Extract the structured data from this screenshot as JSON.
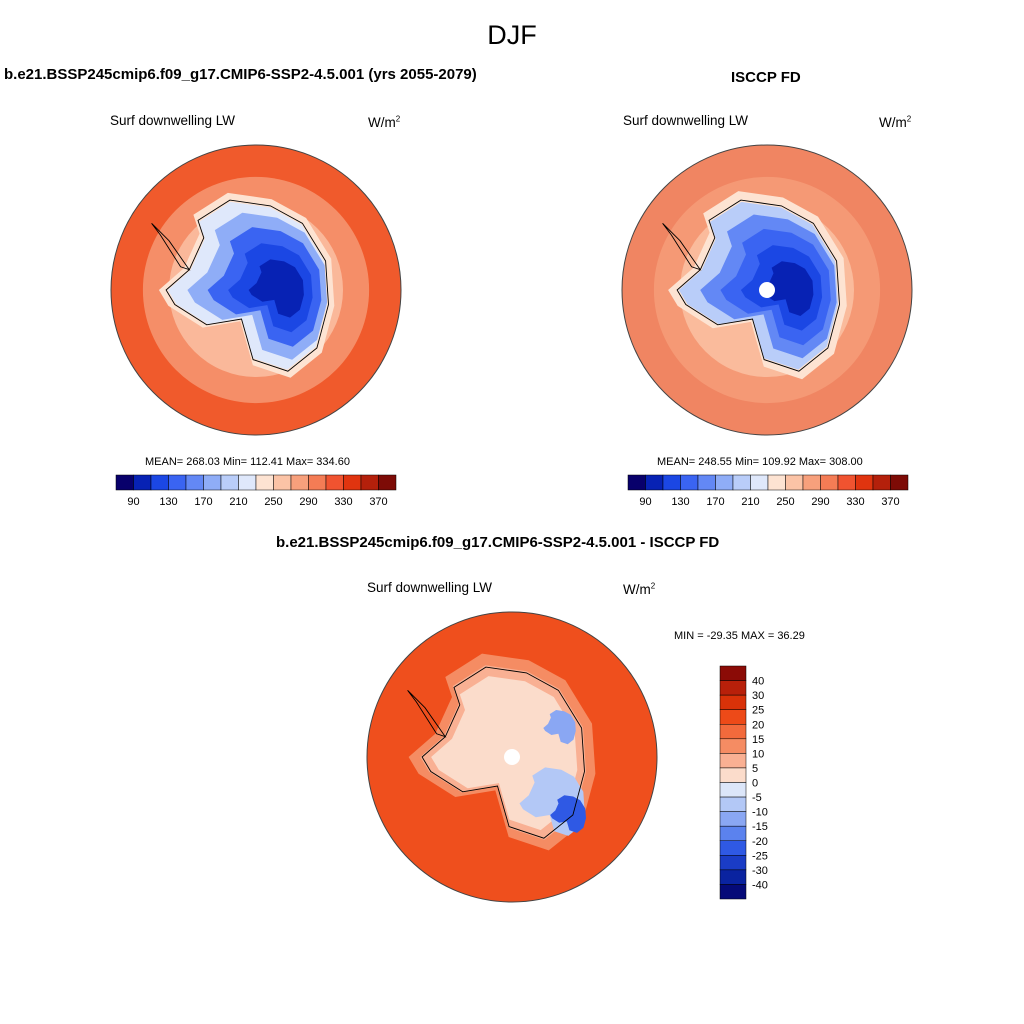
{
  "season": "DJF",
  "panels": [
    {
      "title": "b.e21.BSSP245cmip6.f09_g17.CMIP6-SSP2-4.5.001 (yrs 2055-2079)",
      "variable": "Surf downwelling LW",
      "units_base": "W/m",
      "units_exp": "2",
      "stats": "MEAN= 268.03  Min= 112.41  Max= 334.60"
    },
    {
      "title": "ISCCP FD",
      "variable": "Surf downwelling LW",
      "units_base": "W/m",
      "units_exp": "2",
      "stats": "MEAN= 248.55  Min= 109.92  Max= 308.00"
    },
    {
      "title": "b.e21.BSSP245cmip6.f09_g17.CMIP6-SSP2-4.5.001 - ISCCP FD",
      "variable": "Surf downwelling LW",
      "units_base": "W/m",
      "units_exp": "2",
      "stats": "MIN = -29.35 MAX =  36.29"
    }
  ],
  "chart_data": [
    {
      "type": "heatmap",
      "projection": "south-polar-stereographic",
      "title": "b.e21.BSSP245cmip6.f09_g17.CMIP6-SSP2-4.5.001 (yrs 2055-2079)",
      "variable": "Surf downwelling LW",
      "units": "W/m2",
      "mean": 268.03,
      "min": 112.41,
      "max": 334.6,
      "colorbar_levels": [
        90,
        110,
        130,
        150,
        170,
        190,
        210,
        230,
        250,
        270,
        290,
        310,
        330,
        350,
        370
      ],
      "colorbar_labels": [
        "90",
        "130",
        "170",
        "210",
        "250",
        "290",
        "330",
        "370"
      ]
    },
    {
      "type": "heatmap",
      "projection": "south-polar-stereographic",
      "title": "ISCCP FD",
      "variable": "Surf downwelling LW",
      "units": "W/m2",
      "mean": 248.55,
      "min": 109.92,
      "max": 308.0,
      "colorbar_levels": [
        90,
        110,
        130,
        150,
        170,
        190,
        210,
        230,
        250,
        270,
        290,
        310,
        330,
        350,
        370
      ],
      "colorbar_labels": [
        "90",
        "130",
        "170",
        "210",
        "250",
        "290",
        "330",
        "370"
      ]
    },
    {
      "type": "heatmap",
      "projection": "south-polar-stereographic",
      "title": "b.e21.BSSP245cmip6.f09_g17.CMIP6-SSP2-4.5.001 - ISCCP FD",
      "variable": "Surf downwelling LW",
      "units": "W/m2",
      "min": -29.35,
      "max": 36.29,
      "colorbar_levels": [
        "40",
        "30",
        "25",
        "20",
        "15",
        "10",
        "5",
        "0",
        "-5",
        "-10",
        "-15",
        "-20",
        "-25",
        "-30",
        "-40"
      ]
    }
  ],
  "colors": {
    "horizontal_scale": [
      "#08006b",
      "#0722b4",
      "#1b47e4",
      "#3a64f2",
      "#6388f5",
      "#8fadf7",
      "#b9cdf9",
      "#dfe8fb",
      "#fde3d2",
      "#fbc3a6",
      "#f7a07c",
      "#f47c55",
      "#f05330",
      "#e0340f",
      "#b4200b",
      "#7d0b06"
    ],
    "diff_scale": [
      "#8b0b06",
      "#b8200a",
      "#d93209",
      "#ed4a18",
      "#f26a3c",
      "#f58c63",
      "#f9b093",
      "#fbdccb",
      "#dce6f9",
      "#b3c8f6",
      "#8aa7f3",
      "#5b82ee",
      "#2f59e4",
      "#1a3cc6",
      "#0a23a0",
      "#050a78"
    ],
    "ocean_model": "#f05a2c",
    "ocean_obs": "#f08562",
    "ocean_diff": "#ef4f1d"
  }
}
